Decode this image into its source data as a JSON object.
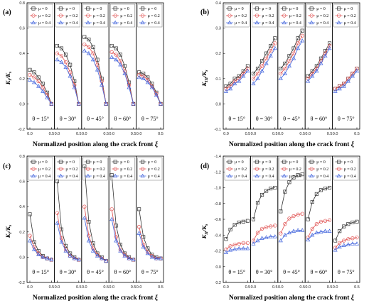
{
  "chart_data": [
    {
      "panel": "(a)",
      "type": "line",
      "ylabel_main": "K",
      "ylabel_sub": "I",
      "ylabel_den": "/K",
      "ylabel_den_sub": "s",
      "xlabel": "Normalized position along the crack front",
      "xlabel_sym": "ξ",
      "ylim": [
        0.8,
        -0.2
      ],
      "yticks": [
        -0.2,
        0,
        0.2,
        0.4,
        0.6,
        0.8
      ],
      "ytick_labels": [
        "-0.2",
        "0.0",
        "0.2",
        "0.4",
        "0.6",
        "0.8"
      ],
      "xlim": [
        0,
        0.5
      ],
      "xticks": [
        0,
        0.5
      ],
      "xtick_labels": [
        "0.0",
        "0.5"
      ],
      "x": [
        0.0,
        0.1,
        0.2,
        0.3,
        0.4,
        0.5
      ],
      "legend_labels": [
        "μ = 0",
        "μ = 0.2",
        "μ = 0.4"
      ],
      "subplots": [
        {
          "label": "θ = 15°",
          "series": [
            [
              0.27,
              0.25,
              0.21,
              0.16,
              0.09,
              0.0
            ],
            [
              0.23,
              0.21,
              0.18,
              0.13,
              0.07,
              0.0
            ],
            [
              0.19,
              0.17,
              0.14,
              0.1,
              0.05,
              0.0
            ]
          ]
        },
        {
          "label": "θ = 30°",
          "series": [
            [
              0.46,
              0.44,
              0.39,
              0.31,
              0.18,
              0.0
            ],
            [
              0.4,
              0.38,
              0.33,
              0.25,
              0.15,
              0.0
            ],
            [
              0.35,
              0.33,
              0.29,
              0.22,
              0.13,
              0.0
            ]
          ]
        },
        {
          "label": "θ = 45°",
          "series": [
            [
              0.53,
              0.51,
              0.45,
              0.35,
              0.2,
              0.0
            ],
            [
              0.47,
              0.45,
              0.4,
              0.31,
              0.18,
              0.0
            ],
            [
              0.42,
              0.4,
              0.35,
              0.27,
              0.15,
              0.0
            ]
          ]
        },
        {
          "label": "θ = 60°",
          "series": [
            [
              0.46,
              0.44,
              0.39,
              0.3,
              0.17,
              0.0
            ],
            [
              0.41,
              0.39,
              0.34,
              0.26,
              0.15,
              0.0
            ],
            [
              0.37,
              0.35,
              0.31,
              0.24,
              0.13,
              0.0
            ]
          ]
        },
        {
          "label": "θ = 75°",
          "series": [
            [
              0.25,
              0.24,
              0.21,
              0.16,
              0.09,
              0.0
            ],
            [
              0.23,
              0.22,
              0.19,
              0.14,
              0.08,
              0.0
            ],
            [
              0.21,
              0.2,
              0.17,
              0.13,
              0.07,
              0.0
            ]
          ]
        }
      ]
    },
    {
      "panel": "(b)",
      "type": "line",
      "ylabel_main": "K",
      "ylabel_sub": "III",
      "ylabel_den": "/K",
      "ylabel_den_sub": "s",
      "xlabel": "Normalized position along the crack front",
      "xlabel_sym": "ξ",
      "ylim": [
        0.4,
        -0.1
      ],
      "yticks": [
        -0.1,
        0,
        0.1,
        0.2,
        0.3,
        0.4
      ],
      "ytick_labels": [
        "-0.1",
        "0.0",
        "0.1",
        "0.2",
        "0.3",
        "0.4"
      ],
      "xlim": [
        0,
        0.5
      ],
      "xticks": [
        0,
        0.5
      ],
      "xtick_labels": [
        "0.0",
        "0.5"
      ],
      "x": [
        0.0,
        0.1,
        0.2,
        0.3,
        0.4,
        0.5
      ],
      "legend_labels": [
        "μ = 0",
        "μ = 0.2",
        "μ = 0.4"
      ],
      "subplots": [
        {
          "label": "θ = 15°",
          "series": [
            [
              0.07,
              0.08,
              0.1,
              0.11,
              0.13,
              0.15
            ],
            [
              0.06,
              0.07,
              0.09,
              0.1,
              0.12,
              0.14
            ],
            [
              0.05,
              0.06,
              0.08,
              0.09,
              0.11,
              0.13
            ]
          ]
        },
        {
          "label": "θ = 30°",
          "series": [
            [
              0.12,
              0.14,
              0.17,
              0.2,
              0.23,
              0.26
            ],
            [
              0.1,
              0.12,
              0.15,
              0.18,
              0.21,
              0.24
            ],
            [
              0.08,
              0.1,
              0.13,
              0.16,
              0.19,
              0.22
            ]
          ]
        },
        {
          "label": "θ = 45°",
          "series": [
            [
              0.14,
              0.16,
              0.19,
              0.22,
              0.26,
              0.29
            ],
            [
              0.12,
              0.14,
              0.17,
              0.2,
              0.24,
              0.27
            ],
            [
              0.1,
              0.12,
              0.15,
              0.18,
              0.22,
              0.25
            ]
          ]
        },
        {
          "label": "θ = 60°",
          "series": [
            [
              0.11,
              0.13,
              0.15,
              0.18,
              0.21,
              0.24
            ],
            [
              0.1,
              0.12,
              0.14,
              0.17,
              0.2,
              0.23
            ],
            [
              0.09,
              0.11,
              0.13,
              0.16,
              0.19,
              0.22
            ]
          ]
        },
        {
          "label": "θ = 75°",
          "series": [
            [
              0.06,
              0.07,
              0.08,
              0.1,
              0.12,
              0.14
            ],
            [
              0.06,
              0.07,
              0.08,
              0.1,
              0.12,
              0.14
            ],
            [
              0.05,
              0.06,
              0.07,
              0.09,
              0.11,
              0.13
            ]
          ]
        }
      ]
    },
    {
      "panel": "(c)",
      "type": "line",
      "ylabel_main": "K",
      "ylabel_sub": "I",
      "ylabel_den": "/K",
      "ylabel_den_sub": "s",
      "xlabel": "Normalized position along the crack front",
      "xlabel_sym": "ξ",
      "ylim": [
        0.8,
        -0.2
      ],
      "yticks": [
        -0.2,
        0,
        0.2,
        0.4,
        0.6,
        0.8
      ],
      "ytick_labels": [
        "-0.2",
        "0.0",
        "0.2",
        "0.4",
        "0.6",
        "0.8"
      ],
      "xlim": [
        0,
        0.5
      ],
      "xticks": [
        0,
        0.5
      ],
      "xtick_labels": [
        "0.0",
        "0.5"
      ],
      "x": [
        0.0,
        0.1,
        0.2,
        0.3,
        0.4,
        0.5
      ],
      "legend_labels": [
        "μ = 0",
        "μ = 0.2",
        "μ = 0.4"
      ],
      "subplots": [
        {
          "label": "θ = 15°",
          "series": [
            [
              0.34,
              0.12,
              0.05,
              0.01,
              -0.01,
              -0.02
            ],
            [
              0.17,
              0.08,
              0.03,
              0.0,
              -0.01,
              -0.02
            ],
            [
              0.13,
              0.06,
              0.02,
              0.0,
              -0.01,
              -0.02
            ]
          ]
        },
        {
          "label": "θ = 30°",
          "series": [
            [
              0.6,
              0.22,
              0.09,
              0.03,
              0.0,
              -0.02
            ],
            [
              0.35,
              0.15,
              0.06,
              0.01,
              -0.01,
              -0.02
            ],
            [
              0.27,
              0.12,
              0.05,
              0.01,
              -0.01,
              -0.02
            ]
          ]
        },
        {
          "label": "θ = 45°",
          "series": [
            [
              0.72,
              0.28,
              0.11,
              0.03,
              0.0,
              -0.03
            ],
            [
              0.4,
              0.17,
              0.07,
              0.02,
              -0.01,
              -0.03
            ],
            [
              0.31,
              0.13,
              0.05,
              0.01,
              -0.01,
              -0.03
            ]
          ]
        },
        {
          "label": "θ = 60°",
          "series": [
            [
              0.65,
              0.25,
              0.1,
              0.03,
              0.0,
              -0.02
            ],
            [
              0.38,
              0.16,
              0.06,
              0.02,
              -0.01,
              -0.02
            ],
            [
              0.3,
              0.13,
              0.05,
              0.01,
              -0.01,
              -0.02
            ]
          ]
        },
        {
          "label": "θ = 75°",
          "series": [
            [
              0.38,
              0.16,
              0.07,
              0.02,
              0.0,
              -0.01
            ],
            [
              0.24,
              0.1,
              0.04,
              0.01,
              -0.01,
              -0.01
            ],
            [
              0.19,
              0.08,
              0.03,
              0.0,
              -0.01,
              -0.01
            ]
          ]
        }
      ]
    },
    {
      "panel": "(d)",
      "type": "line",
      "ylabel_main": "K",
      "ylabel_sub": "II",
      "ylabel_den": "/K",
      "ylabel_den_sub": "s",
      "xlabel": "Normalized position along the crack front",
      "xlabel_sym": "ξ",
      "ylim": [
        -1.4,
        0.2
      ],
      "yticks": [
        -1.4,
        -1.2,
        -1.0,
        -0.8,
        -0.6,
        -0.4,
        -0.2,
        0,
        0.2
      ],
      "ytick_labels": [
        "-1.4",
        "-1.2",
        "-1.0",
        "-0.8",
        "-0.6",
        "-0.4",
        "-0.2",
        "0.0",
        "0.2"
      ],
      "xlim": [
        0,
        0.5
      ],
      "xticks": [
        0,
        0.5
      ],
      "xtick_labels": [
        "0.0",
        "0.5"
      ],
      "x": [
        0.0,
        0.1,
        0.2,
        0.3,
        0.4,
        0.5
      ],
      "legend_labels": [
        "μ = 0",
        "μ = 0.2",
        "μ = 0.4"
      ],
      "subplots": [
        {
          "label": "θ = 15°",
          "series": [
            [
              -0.35,
              -0.47,
              -0.53,
              -0.56,
              -0.57,
              -0.58
            ],
            [
              -0.22,
              -0.26,
              -0.28,
              -0.29,
              -0.3,
              -0.3
            ],
            [
              -0.18,
              -0.21,
              -0.22,
              -0.23,
              -0.23,
              -0.23
            ]
          ]
        },
        {
          "label": "θ = 30°",
          "series": [
            [
              -0.6,
              -0.81,
              -0.91,
              -0.96,
              -0.99,
              -1.0
            ],
            [
              -0.33,
              -0.43,
              -0.48,
              -0.5,
              -0.51,
              -0.52
            ],
            [
              -0.29,
              -0.33,
              -0.36,
              -0.37,
              -0.38,
              -0.38
            ]
          ]
        },
        {
          "label": "θ = 45°",
          "series": [
            [
              -0.7,
              -0.95,
              -1.07,
              -1.13,
              -1.16,
              -1.17
            ],
            [
              -0.42,
              -0.54,
              -0.61,
              -0.64,
              -0.66,
              -0.67
            ],
            [
              -0.33,
              -0.4,
              -0.43,
              -0.45,
              -0.46,
              -0.46
            ]
          ]
        },
        {
          "label": "θ = 60°",
          "series": [
            [
              -0.6,
              -0.82,
              -0.92,
              -0.97,
              -0.99,
              -1.0
            ],
            [
              -0.37,
              -0.48,
              -0.54,
              -0.57,
              -0.58,
              -0.59
            ],
            [
              -0.34,
              -0.4,
              -0.43,
              -0.44,
              -0.45,
              -0.45
            ]
          ]
        },
        {
          "label": "θ = 75°",
          "series": [
            [
              -0.33,
              -0.45,
              -0.51,
              -0.54,
              -0.56,
              -0.57
            ],
            [
              -0.24,
              -0.3,
              -0.33,
              -0.35,
              -0.36,
              -0.37
            ],
            [
              -0.21,
              -0.25,
              -0.27,
              -0.28,
              -0.29,
              -0.29
            ]
          ]
        }
      ]
    }
  ],
  "colors": [
    "#333333",
    "#e05050",
    "#4466dd"
  ],
  "marker_names": [
    "square",
    "circle",
    "triangle"
  ]
}
